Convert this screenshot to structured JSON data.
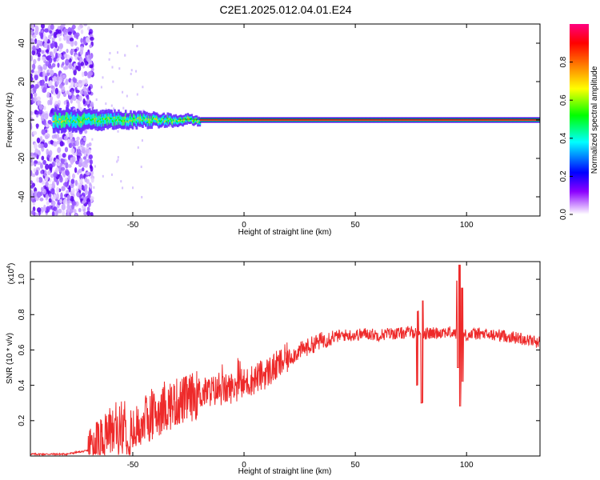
{
  "title": "C2E1.2025.012.04.01.E24",
  "chart_data": [
    {
      "type": "heatmap",
      "xlabel": "Height of straight line (km)",
      "ylabel": "Frequency (Hz)",
      "xlim": [
        -96,
        133
      ],
      "ylim": [
        -50,
        50
      ],
      "xticks": [
        -50,
        0,
        50,
        100
      ],
      "yticks": [
        -40,
        -20,
        0,
        20,
        40
      ],
      "colorbar": {
        "label": "Normalized spectral amplitude",
        "range": [
          0,
          1
        ],
        "ticks": [
          "0.0",
          "0.2",
          "0.4",
          "0.6",
          "0.8"
        ],
        "colormap": [
          "#ffffff",
          "#8c00ff",
          "#0000ff",
          "#00ffff",
          "#00ff00",
          "#ffff00",
          "#ff8000",
          "#ff0000",
          "#ff0080"
        ]
      },
      "features": {
        "noise_region_x": [
          -96,
          -70
        ],
        "carrier_frequency": 0,
        "carrier_start_x": -20
      }
    },
    {
      "type": "line",
      "xlabel": "Height of straight line (km)",
      "ylabel": "SNR (10 * v/v)",
      "y_multiplier": "(x10",
      "y_multiplier_exp": "4",
      "xlim": [
        -96,
        133
      ],
      "ylim": [
        0,
        1.1
      ],
      "xticks": [
        -50,
        0,
        50,
        100
      ],
      "yticks": [
        "0.2",
        "0.4",
        "0.6",
        "0.8",
        "1.0"
      ],
      "color": "#ee2a2a",
      "x": [
        -96,
        -80,
        -70,
        -62,
        -55,
        -50,
        -45,
        -40,
        -35,
        -30,
        -25,
        -20,
        -15,
        -10,
        -5,
        0,
        5,
        10,
        15,
        20,
        25,
        30,
        35,
        40,
        45,
        50,
        55,
        60,
        65,
        70,
        75,
        80,
        85,
        90,
        95,
        100,
        105,
        110,
        115,
        120,
        125,
        133
      ],
      "values": [
        0.01,
        0.01,
        0.03,
        0.1,
        0.14,
        0.11,
        0.19,
        0.22,
        0.26,
        0.29,
        0.31,
        0.34,
        0.36,
        0.36,
        0.38,
        0.4,
        0.43,
        0.46,
        0.5,
        0.55,
        0.59,
        0.62,
        0.65,
        0.67,
        0.68,
        0.68,
        0.69,
        0.68,
        0.69,
        0.69,
        0.7,
        0.69,
        0.69,
        0.7,
        0.69,
        0.68,
        0.69,
        0.68,
        0.68,
        0.67,
        0.66,
        0.64
      ],
      "spikes": [
        {
          "x": 78,
          "min": 0.4,
          "max": 0.82
        },
        {
          "x": 80,
          "min": 0.3,
          "max": 0.88
        },
        {
          "x": 96,
          "min": 0.5,
          "max": 0.99
        },
        {
          "x": 97,
          "min": 0.28,
          "max": 1.08
        },
        {
          "x": 98,
          "min": 0.42,
          "max": 0.95
        }
      ]
    }
  ]
}
